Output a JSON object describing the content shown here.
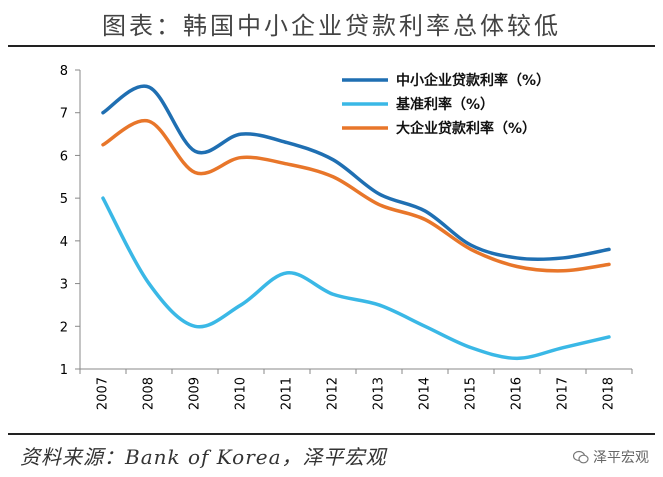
{
  "title": "图表：韩国中小企业贷款利率总体较低",
  "source": "资料来源：Bank of Korea，泽平宏观",
  "watermark": "泽平宏观",
  "chart_data": {
    "type": "line",
    "x": [
      "2007",
      "2008",
      "2009",
      "2010",
      "2011",
      "2012",
      "2013",
      "2014",
      "2015",
      "2016",
      "2017",
      "2018"
    ],
    "ylim": [
      1,
      8
    ],
    "yticks": [
      "1",
      "2",
      "3",
      "4",
      "5",
      "6",
      "7",
      "8"
    ],
    "grid": false,
    "legend_position": "top-right",
    "series": [
      {
        "name": "中小企业贷款利率（%）",
        "color": "#1f6fb2",
        "values": [
          7.0,
          7.6,
          6.1,
          6.5,
          6.3,
          5.9,
          5.1,
          4.7,
          3.9,
          3.6,
          3.6,
          3.8
        ]
      },
      {
        "name": "基准利率（%）",
        "color": "#3ab8e6",
        "values": [
          5.0,
          3.0,
          2.0,
          2.5,
          3.25,
          2.75,
          2.5,
          2.0,
          1.5,
          1.25,
          1.5,
          1.75
        ]
      },
      {
        "name": "大企业贷款利率（%）",
        "color": "#e8762a",
        "values": [
          6.25,
          6.8,
          5.6,
          5.95,
          5.8,
          5.5,
          4.85,
          4.5,
          3.8,
          3.4,
          3.3,
          3.45
        ]
      }
    ]
  }
}
